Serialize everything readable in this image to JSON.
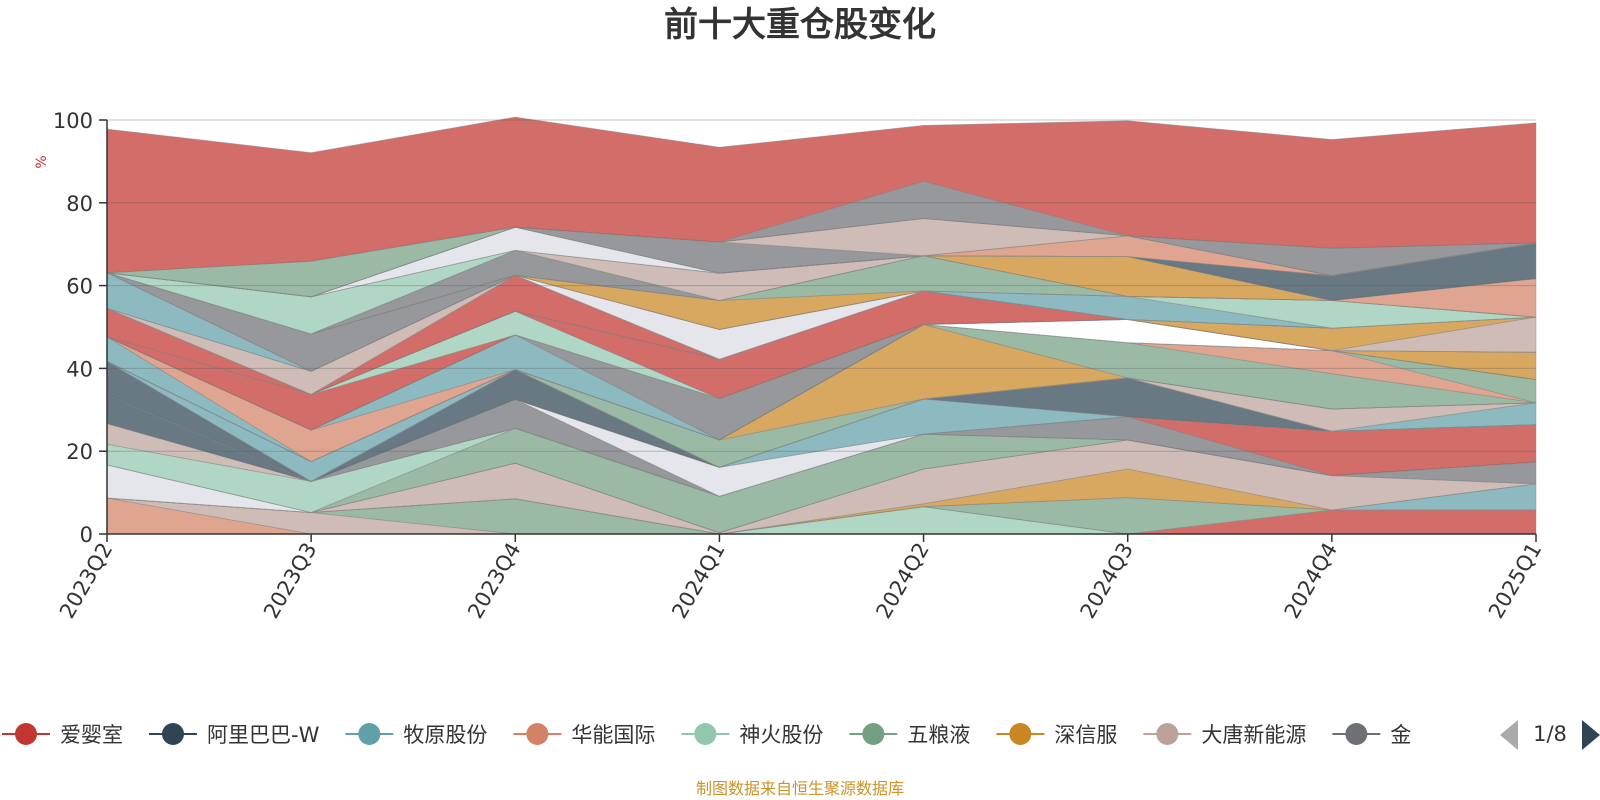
{
  "chart_data": {
    "type": "area",
    "stacked": true,
    "title": "前十大重仓股变化",
    "ylabel": "%",
    "ylim": [
      0,
      100
    ],
    "yticks": [
      "0",
      "20",
      "40",
      "60",
      "80",
      "100"
    ],
    "categories": [
      "2023Q2",
      "2023Q3",
      "2023Q4",
      "2024Q1",
      "2024Q2",
      "2024Q3",
      "2024Q4",
      "2025Q1"
    ],
    "grid": true,
    "legend": {
      "position": "bottom",
      "page": "1/8",
      "items": [
        {
          "name": "爱婴室",
          "color": "#c23531"
        },
        {
          "name": "阿里巴巴-W",
          "color": "#2f4554"
        },
        {
          "name": "牧原股份",
          "color": "#61a0a8"
        },
        {
          "name": "华能国际",
          "color": "#d48265"
        },
        {
          "name": "神火股份",
          "color": "#91c7ae"
        },
        {
          "name": "五粮液",
          "color": "#749f83"
        },
        {
          "name": "深信服",
          "color": "#ca8622"
        },
        {
          "name": "大唐新能源",
          "color": "#bda29a"
        },
        {
          "name": "金",
          "color": "#6e7074"
        }
      ]
    },
    "bands": [
      {
        "color": "#d48265",
        "values": [
          8.7,
          0,
          0,
          0,
          0,
          0,
          0,
          0
        ]
      },
      {
        "color": "#bda29a",
        "values": [
          0,
          5.2,
          0,
          0,
          0,
          0,
          0,
          0
        ]
      },
      {
        "color": "#749f83",
        "values": [
          0,
          0,
          8.5,
          0,
          0,
          0,
          0,
          0
        ]
      },
      {
        "color": "#91c7ae",
        "values": [
          0,
          0,
          0,
          0,
          6.6,
          0,
          0,
          0
        ]
      },
      {
        "color": "#c23531",
        "values": [
          0,
          0,
          0,
          0,
          0,
          0,
          5.8,
          5.8
        ]
      },
      {
        "color": "#749f83",
        "values": [
          0,
          0,
          0,
          0,
          0,
          8.8,
          0,
          0
        ]
      },
      {
        "color": "#61a0a8",
        "values": [
          0,
          0,
          0,
          0,
          0,
          0,
          0,
          6.3
        ]
      },
      {
        "color": "#ca8622",
        "values": [
          0,
          0,
          0,
          0,
          0.7,
          6.9,
          0,
          0
        ]
      },
      {
        "color": "#bda29a",
        "values": [
          0,
          0,
          8.6,
          0.3,
          8.4,
          7.0,
          8.3,
          0
        ]
      },
      {
        "color": "#6e7074",
        "values": [
          0,
          0,
          0,
          0,
          0,
          0,
          0,
          5.3
        ]
      },
      {
        "color": "#dadde3",
        "values": [
          8.0,
          0,
          0,
          0,
          0,
          0,
          0,
          0
        ]
      },
      {
        "color": "#749f83",
        "values": [
          0,
          0,
          8.4,
          8.8,
          8.4,
          0,
          0,
          0
        ]
      },
      {
        "color": "#91c7ae",
        "values": [
          5.0,
          7.5,
          0,
          0,
          0,
          0,
          0,
          0
        ]
      },
      {
        "color": "#bda29a",
        "values": [
          5.0,
          0,
          0,
          0,
          0,
          0,
          0,
          0
        ]
      },
      {
        "color": "#6e7074",
        "values": [
          0,
          0,
          7.0,
          0,
          0,
          5.6,
          0,
          0
        ]
      },
      {
        "color": "#c23531",
        "values": [
          0,
          0,
          0,
          0,
          0,
          0,
          10.7,
          9.0
        ]
      },
      {
        "color": "#2f4554",
        "values": [
          7.0,
          0,
          0,
          0,
          0,
          0,
          0,
          0
        ]
      },
      {
        "color": "#dadde3",
        "values": [
          0,
          0,
          0,
          7.0,
          0,
          0,
          0,
          0
        ]
      },
      {
        "color": "#61a0a8",
        "values": [
          0,
          0,
          0,
          0,
          8.5,
          0,
          0,
          0
        ]
      },
      {
        "color": "#2f4554",
        "values": [
          0,
          0,
          0,
          0,
          0,
          9.4,
          0,
          0
        ]
      },
      {
        "color": "#61a0a8",
        "values": [
          0,
          0,
          0,
          0,
          0,
          0,
          0,
          5.3
        ]
      },
      {
        "color": "#bda29a",
        "values": [
          0,
          0,
          0,
          0,
          0,
          0,
          5.4,
          0
        ]
      },
      {
        "color": "#2f4554",
        "values": [
          8.0,
          0,
          7.2,
          0,
          0,
          0,
          0,
          0
        ]
      },
      {
        "color": "#61a0a8",
        "values": [
          0,
          4.8,
          0,
          0,
          0,
          0,
          0,
          0
        ]
      },
      {
        "color": "#749f83",
        "values": [
          0,
          0,
          0,
          6.6,
          0,
          0,
          0,
          0
        ]
      },
      {
        "color": "#ca8622",
        "values": [
          0,
          0,
          0,
          0,
          18.0,
          0,
          0,
          0
        ]
      },
      {
        "color": "#749f83",
        "values": [
          0,
          0,
          0,
          0,
          0,
          8.5,
          8.5,
          0
        ]
      },
      {
        "color": "#d48265",
        "values": [
          0,
          0,
          0,
          0,
          0,
          0,
          5.6,
          0
        ]
      },
      {
        "color": "#749f83",
        "values": [
          0,
          0,
          0,
          0,
          0,
          0,
          0,
          5.6
        ]
      },
      {
        "color": "#61a0a8",
        "values": [
          5.9,
          0,
          0,
          0,
          0,
          0,
          0,
          0
        ]
      },
      {
        "color": "#d48265",
        "values": [
          0,
          7.6,
          0,
          0,
          0,
          0,
          0,
          0
        ]
      },
      {
        "color": "#61a0a8",
        "values": [
          0,
          0,
          8.4,
          0,
          0,
          0,
          0,
          0
        ]
      },
      {
        "color": "#6e7074",
        "values": [
          0,
          0,
          0,
          10.0,
          0,
          0,
          0,
          0
        ]
      },
      {
        "color": "#ffffff",
        "values": [
          0,
          0,
          0,
          0,
          0,
          5.6,
          0,
          0
        ]
      },
      {
        "color": "#ca8622",
        "values": [
          0,
          0,
          0,
          0,
          0,
          0,
          0,
          6.6
        ]
      },
      {
        "color": "#c23531",
        "values": [
          0,
          8.6,
          0,
          0,
          0,
          0,
          0,
          0
        ]
      },
      {
        "color": "#91c7ae",
        "values": [
          0,
          0,
          5.7,
          0,
          0,
          0,
          0,
          0
        ]
      },
      {
        "color": "#c23531",
        "values": [
          6.9,
          0,
          0,
          9.5,
          8.1,
          0,
          0,
          0
        ]
      },
      {
        "color": "#bda29a",
        "values": [
          0,
          0,
          0,
          0,
          0,
          0,
          0,
          8.5
        ]
      },
      {
        "color": "#ca8622",
        "values": [
          0,
          0,
          0,
          0,
          0,
          0,
          5.4,
          0
        ]
      },
      {
        "color": "#c23531",
        "values": [
          0,
          0,
          8.7,
          0,
          0,
          0,
          0,
          0
        ]
      },
      {
        "color": "#bda29a",
        "values": [
          0,
          5.6,
          0,
          0,
          0,
          0,
          0,
          0
        ]
      },
      {
        "color": "#dadde3",
        "values": [
          0,
          0,
          0,
          7.2,
          0,
          0,
          0,
          0
        ]
      },
      {
        "color": "#61a0a8",
        "values": [
          8.6,
          0,
          0,
          0,
          0,
          5.6,
          0,
          0
        ]
      },
      {
        "color": "#91c7ae",
        "values": [
          0,
          0,
          0,
          0,
          0,
          0,
          6.7,
          0
        ]
      },
      {
        "color": "#6e7074",
        "values": [
          0,
          9.0,
          0,
          0,
          0,
          0,
          0,
          0
        ]
      },
      {
        "color": "#ca8622",
        "values": [
          0,
          0,
          0,
          7.0,
          0,
          0,
          0,
          0
        ]
      },
      {
        "color": "#749f83",
        "values": [
          0,
          0,
          0,
          0,
          8.5,
          0,
          0,
          0
        ]
      },
      {
        "color": "#d48265",
        "values": [
          0,
          0,
          0,
          0,
          0,
          0,
          0,
          9.3
        ]
      },
      {
        "color": "#6e7074",
        "values": [
          0,
          0,
          6.0,
          0,
          0,
          0,
          0,
          0
        ]
      },
      {
        "color": "#ca8622",
        "values": [
          0,
          0,
          0,
          0,
          0,
          9.6,
          0,
          0
        ]
      },
      {
        "color": "#bda29a",
        "values": [
          0,
          0,
          0,
          6.6,
          0,
          0,
          0,
          0
        ]
      },
      {
        "color": "#91c7ae",
        "values": [
          0,
          9.0,
          0,
          0,
          0,
          0,
          0,
          0
        ]
      },
      {
        "color": "#2f4554",
        "values": [
          0,
          0,
          0,
          0,
          0,
          0,
          6.0,
          8.6
        ]
      },
      {
        "color": "#dadde3",
        "values": [
          0,
          0,
          5.6,
          0,
          0,
          0,
          0,
          0
        ]
      },
      {
        "color": "#d48265",
        "values": [
          0,
          0,
          0,
          0,
          0,
          5.0,
          0,
          0
        ]
      },
      {
        "color": "#6e7074",
        "values": [
          0,
          0,
          0,
          7.5,
          0,
          0,
          0,
          0
        ]
      },
      {
        "color": "#bda29a",
        "values": [
          0,
          0,
          0,
          0,
          9.0,
          0,
          0,
          0
        ]
      },
      {
        "color": "#6e7074",
        "values": [
          0,
          0,
          0,
          0,
          0,
          0,
          6.6,
          0
        ]
      },
      {
        "color": "#749f83",
        "values": [
          0,
          8.6,
          0,
          0,
          0,
          0,
          0,
          0
        ]
      },
      {
        "color": "#6e7074",
        "values": [
          0,
          0,
          0,
          0,
          9.0,
          0,
          0,
          0
        ]
      },
      {
        "color": "#c23531",
        "values": [
          34.7,
          26.2,
          26.6,
          22.9,
          13.5,
          27.8,
          26.3,
          29.0
        ]
      }
    ]
  },
  "footer": {
    "note": "制图数据来自恒生聚源数据库"
  }
}
